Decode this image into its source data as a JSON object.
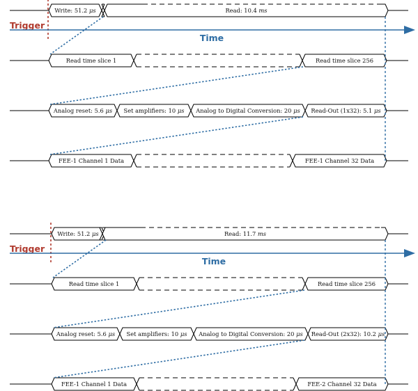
{
  "colors": {
    "trigger": "#b03a2e",
    "time_axis": "#2e6da4",
    "connector": "#2e6da4",
    "signal": "#000000"
  },
  "panels": [
    {
      "trigger_label": "Trigger",
      "time_label": "Time",
      "write": {
        "text": "Write: 51.2 ",
        "unit": "μs"
      },
      "read": {
        "text": "Read: 10.4 ",
        "unit": "ms"
      },
      "read_slices": {
        "first": "Read time slice 1",
        "last": "Read time slice 256"
      },
      "analog_phases": [
        {
          "text": "Analog reset: 5.6 ",
          "unit": "μs"
        },
        {
          "text": "Set amplifiers: 10 ",
          "unit": "μs"
        },
        {
          "text": "Analog to Digital Conversion: 20 ",
          "unit": "μs"
        },
        {
          "text": "Read-Out (1x32): 5.1 ",
          "unit": "μs"
        }
      ],
      "fee_data": {
        "first": "FEE-1 Channel 1 Data",
        "last": "FEE-1 Channel 32 Data"
      }
    },
    {
      "trigger_label": "Trigger",
      "time_label": "Time",
      "write": {
        "text": "Write: 51.2 ",
        "unit": "μs"
      },
      "read": {
        "text": "Read: 11.7 ",
        "unit": "ms"
      },
      "read_slices": {
        "first": "Read time slice 1",
        "last": "Read time slice 256"
      },
      "analog_phases": [
        {
          "text": "Analog reset: 5.6 ",
          "unit": "μs"
        },
        {
          "text": "Set amplifiers: 10 ",
          "unit": "μs"
        },
        {
          "text": "Analog to Digital Conversion: 20 ",
          "unit": "μs"
        },
        {
          "text": "Read-Out (2x32): 10.2 ",
          "unit": "μs"
        }
      ],
      "fee_data": {
        "first": "FEE-1 Channel 1 Data",
        "last": "FEE-2 Channel 32 Data"
      }
    }
  ]
}
